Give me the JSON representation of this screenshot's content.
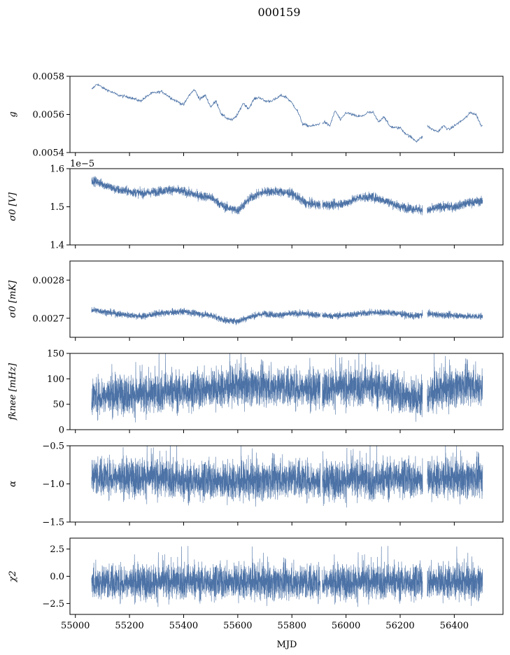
{
  "figure_title": "000159",
  "series_color": "#4c72a6",
  "chart_data": [
    {
      "type": "line",
      "ylabel": "g",
      "ylabel_style": "math",
      "ylim": [
        0.0054,
        0.0058
      ],
      "yticks": [
        0.0054,
        0.0056,
        0.0058
      ],
      "ytick_labels": [
        "0.0054",
        "0.0056",
        "0.0058"
      ],
      "offset_text": "",
      "kind": "thin",
      "x": [
        55060,
        55080,
        55100,
        55130,
        55160,
        55200,
        55240,
        55280,
        55320,
        55360,
        55400,
        55420,
        55440,
        55460,
        55480,
        55500,
        55520,
        55540,
        55560,
        55580,
        55600,
        55620,
        55640,
        55660,
        55680,
        55700,
        55720,
        55740,
        55760,
        55780,
        55800,
        55820,
        55840,
        55860,
        55880,
        55900,
        55920,
        55940,
        55960,
        55980,
        56000,
        56020,
        56040,
        56060,
        56080,
        56100,
        56120,
        56140,
        56160,
        56180,
        56200,
        56220,
        56240,
        56260,
        56280,
        56300,
        56320,
        56340,
        56360,
        56380,
        56400,
        56420,
        56440,
        56460,
        56480,
        56500
      ],
      "y": [
        0.00573,
        0.00576,
        0.00574,
        0.00572,
        0.0057,
        0.00569,
        0.00567,
        0.00571,
        0.00572,
        0.00568,
        0.00565,
        0.0057,
        0.00573,
        0.00568,
        0.0057,
        0.00564,
        0.00567,
        0.0056,
        0.00558,
        0.00557,
        0.0056,
        0.00566,
        0.00563,
        0.00568,
        0.00569,
        0.00567,
        0.00567,
        0.00568,
        0.0057,
        0.00569,
        0.00566,
        0.00562,
        0.00555,
        0.00554,
        0.00554,
        0.00555,
        0.00556,
        0.00554,
        0.00562,
        0.00557,
        0.00561,
        0.0056,
        0.00559,
        0.00559,
        0.00561,
        0.00561,
        0.00556,
        0.00559,
        0.00554,
        0.00553,
        0.00553,
        0.0055,
        0.00548,
        0.00546,
        0.00548,
        0.00554,
        0.00552,
        0.00551,
        0.00554,
        0.00552,
        0.00554,
        0.00556,
        0.00558,
        0.00561,
        0.0056,
        0.00554
      ]
    },
    {
      "type": "line",
      "ylabel": "σ0 [V]",
      "ylabel_style": "math",
      "ylim": [
        1.4,
        1.6
      ],
      "yticks": [
        1.4,
        1.5,
        1.6
      ],
      "ytick_labels": [
        "1.4",
        "1.5",
        "1.6"
      ],
      "offset_text": "1e−5",
      "kind": "band",
      "x": [
        55060,
        55100,
        55150,
        55200,
        55250,
        55300,
        55350,
        55400,
        55450,
        55500,
        55550,
        55600,
        55650,
        55700,
        55750,
        55800,
        55850,
        55900,
        55950,
        56000,
        56050,
        56100,
        56150,
        56200,
        56250,
        56300,
        56350,
        56400,
        56450,
        56500
      ],
      "y": [
        1.57,
        1.56,
        1.545,
        1.54,
        1.535,
        1.54,
        1.545,
        1.54,
        1.53,
        1.525,
        1.5,
        1.49,
        1.525,
        1.54,
        1.54,
        1.535,
        1.51,
        1.505,
        1.505,
        1.51,
        1.525,
        1.525,
        1.515,
        1.5,
        1.495,
        1.49,
        1.5,
        1.5,
        1.51,
        1.515
      ],
      "spread": 0.012
    },
    {
      "type": "line",
      "ylabel": "σ0 [mK]",
      "ylabel_style": "math",
      "ylim": [
        0.00265,
        0.00285
      ],
      "yticks": [
        0.0027,
        0.0028
      ],
      "ytick_labels": [
        "0.0027",
        "0.0028"
      ],
      "offset_text": "",
      "kind": "band",
      "x": [
        55060,
        55100,
        55150,
        55200,
        55250,
        55300,
        55350,
        55400,
        55450,
        55500,
        55550,
        55600,
        55650,
        55700,
        55750,
        55800,
        55850,
        55900,
        55950,
        56000,
        56050,
        56100,
        56150,
        56200,
        56250,
        56300,
        56350,
        56400,
        56450,
        56500
      ],
      "y": [
        0.002722,
        0.002718,
        0.002712,
        0.002708,
        0.002705,
        0.002712,
        0.002715,
        0.002718,
        0.002712,
        0.002708,
        0.002695,
        0.002692,
        0.002705,
        0.002712,
        0.002708,
        0.002712,
        0.002712,
        0.002708,
        0.002706,
        0.002708,
        0.002712,
        0.002715,
        0.002715,
        0.002712,
        0.002705,
        0.002712,
        0.002708,
        0.002708,
        0.002705,
        0.002705
      ],
      "spread": 8.5e-06
    },
    {
      "type": "line",
      "ylabel": "fknee [mHz]",
      "ylabel_style": "math",
      "ylim": [
        0,
        150
      ],
      "yticks": [
        0,
        50,
        100,
        150
      ],
      "ytick_labels": [
        "0",
        "50",
        "100",
        "150"
      ],
      "offset_text": "",
      "kind": "noise",
      "x": [
        55060,
        55100,
        55150,
        55200,
        55250,
        55300,
        55350,
        55400,
        55450,
        55500,
        55550,
        55600,
        55650,
        55700,
        55750,
        55800,
        55850,
        55900,
        55950,
        56000,
        56050,
        56100,
        56150,
        56200,
        56250,
        56300,
        56350,
        56400,
        56450,
        56500
      ],
      "y": [
        65,
        68,
        70,
        70,
        68,
        72,
        75,
        75,
        78,
        80,
        82,
        88,
        88,
        85,
        85,
        85,
        82,
        80,
        85,
        82,
        85,
        85,
        82,
        70,
        62,
        65,
        80,
        85,
        88,
        85
      ],
      "spread": 38
    },
    {
      "type": "line",
      "ylabel": "α",
      "ylabel_style": "math",
      "ylim": [
        -1.5,
        -0.5
      ],
      "yticks": [
        -1.5,
        -1.0,
        -0.5
      ],
      "ytick_labels": [
        "−1.5",
        "−1.0",
        "−0.5"
      ],
      "offset_text": "",
      "kind": "noise",
      "x": [
        55060,
        55100,
        55150,
        55200,
        55250,
        55300,
        55350,
        55400,
        55450,
        55500,
        55550,
        55600,
        55650,
        55700,
        55750,
        55800,
        55850,
        55900,
        55950,
        56000,
        56050,
        56100,
        56150,
        56200,
        56250,
        56300,
        56350,
        56400,
        56450,
        56500
      ],
      "y": [
        -0.9,
        -0.9,
        -0.9,
        -0.92,
        -0.9,
        -0.92,
        -0.92,
        -0.98,
        -0.95,
        -0.95,
        -0.97,
        -0.97,
        -0.95,
        -0.95,
        -0.93,
        -0.92,
        -0.93,
        -0.97,
        -0.95,
        -0.95,
        -0.92,
        -0.98,
        -0.93,
        -0.9,
        -0.95,
        -0.93,
        -0.93,
        -0.92,
        -0.92,
        -0.92
      ],
      "spread": 0.25
    },
    {
      "type": "line",
      "ylabel": "χ2",
      "ylabel_style": "math",
      "ylim": [
        -3.5,
        3.5
      ],
      "yticks": [
        -2.5,
        0.0,
        2.5
      ],
      "ytick_labels": [
        "−2.5",
        "0.0",
        "2.5"
      ],
      "offset_text": "",
      "kind": "noise",
      "x": [
        55060,
        55100,
        55150,
        55200,
        55250,
        55300,
        55350,
        55400,
        55450,
        55500,
        55550,
        55600,
        55650,
        55700,
        55750,
        55800,
        55850,
        55900,
        55950,
        56000,
        56050,
        56100,
        56150,
        56200,
        56250,
        56300,
        56350,
        56400,
        56450,
        56500
      ],
      "y": [
        -0.5,
        -0.5,
        -0.5,
        -0.5,
        -0.5,
        -0.5,
        -0.5,
        -0.5,
        -0.5,
        -0.5,
        -0.5,
        -0.5,
        -0.5,
        -0.5,
        -0.5,
        -0.5,
        -0.5,
        -0.5,
        -0.5,
        -0.5,
        -0.5,
        -0.5,
        -0.5,
        -0.5,
        -0.5,
        -0.5,
        -0.5,
        -0.5,
        -0.5,
        -0.5
      ],
      "spread": 1.6
    }
  ],
  "xaxis": {
    "label": "MJD",
    "xlim": [
      54980,
      56580
    ],
    "ticks": [
      55000,
      55200,
      55400,
      55600,
      55800,
      56000,
      56200,
      56400
    ],
    "tick_labels": [
      "55000",
      "55200",
      "55400",
      "55600",
      "55800",
      "56000",
      "56200",
      "56400"
    ],
    "gaps": [
      [
        55905,
        55912
      ],
      [
        56283,
        56300
      ]
    ]
  }
}
